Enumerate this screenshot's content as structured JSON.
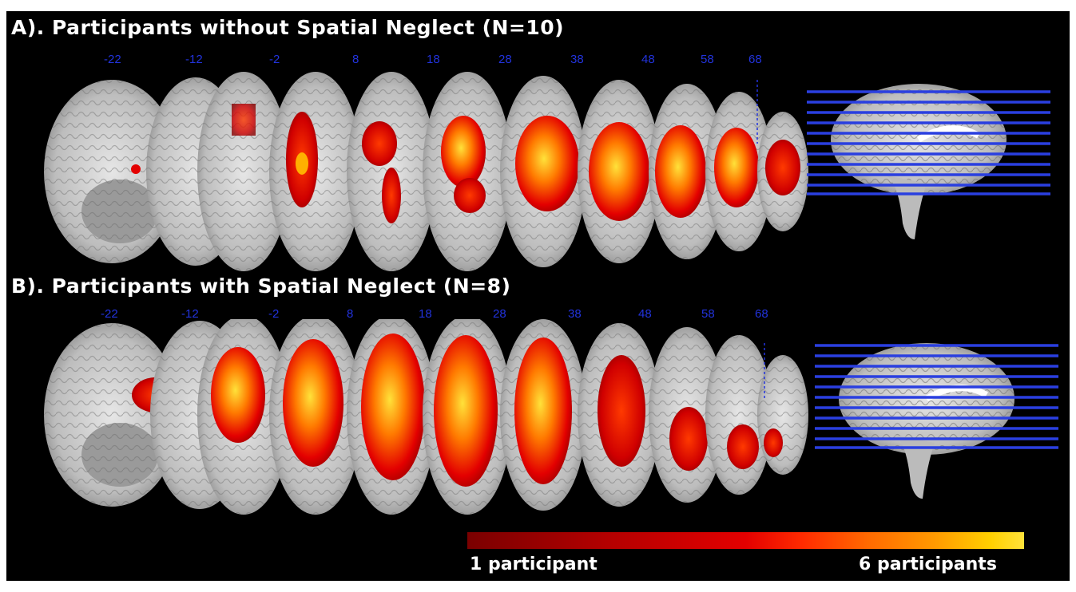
{
  "panels": [
    {
      "title": "A). Participants without Spatial Neglect (N=10)",
      "slice_labels": [
        "-22",
        "-12",
        "-2",
        "8",
        "18",
        "28",
        "38",
        "48",
        "58",
        "68"
      ]
    },
    {
      "title": "B). Participants with Spatial Neglect (N=8)",
      "slice_labels": [
        "-22",
        "-12",
        "-2",
        "8",
        "18",
        "28",
        "38",
        "48",
        "58",
        "68"
      ]
    }
  ],
  "colorbar": {
    "min_label": "1 participant",
    "max_label": "6 participants",
    "colors": [
      "#7a0000",
      "#e30000",
      "#ff6a00",
      "#ffe23a"
    ]
  },
  "colors": {
    "background": "#000000",
    "slice_label": "#2233dd",
    "slice_lines": "#2a3fe0",
    "title": "#ffffff"
  },
  "icons": [
    "axial-brain-slice-icon",
    "sagittal-brain-icon"
  ]
}
